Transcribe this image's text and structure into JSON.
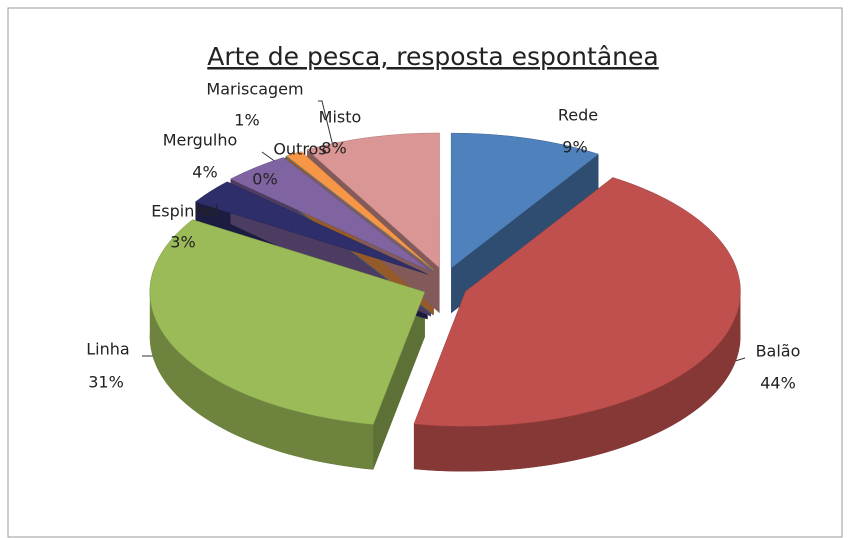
{
  "chart_data": {
    "type": "pie",
    "title": "Arte de pesca, resposta espontânea",
    "categories": [
      "Rede",
      "Balão",
      "Linha",
      "Espinhel",
      "Mergulho",
      "Outros",
      "Mariscagem",
      "Misto"
    ],
    "values": [
      9,
      44,
      31,
      3,
      4,
      0,
      1,
      8
    ],
    "value_labels": [
      "9%",
      "44%",
      "31%",
      "3%",
      "4%",
      "0%",
      "1%",
      "8%"
    ],
    "colors": [
      "#4f81bd",
      "#c0504d",
      "#9bbb59",
      "#2e2e6b",
      "#8064a2",
      "#4bacc6",
      "#f79646",
      "#d99694"
    ]
  }
}
